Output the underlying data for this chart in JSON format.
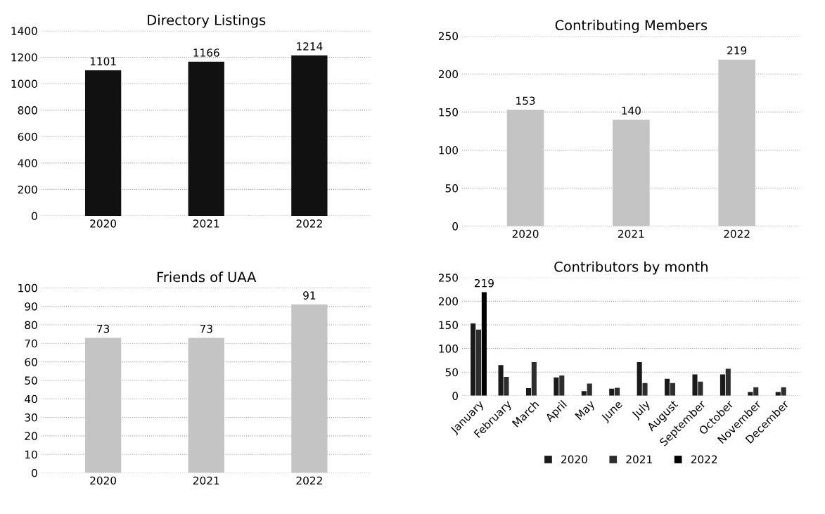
{
  "chart_data": [
    {
      "type": "bar",
      "title": "Directory Listings",
      "categories": [
        "2020",
        "2021",
        "2022"
      ],
      "values": [
        1101,
        1166,
        1214
      ],
      "color": "#111111",
      "ylim": [
        0,
        1400
      ],
      "yticks": [
        0,
        200,
        400,
        600,
        800,
        1000,
        1200,
        1400
      ],
      "grid": "y",
      "data_labels": true
    },
    {
      "type": "bar",
      "title": "Contributing Members",
      "categories": [
        "2020",
        "2021",
        "2022"
      ],
      "values": [
        153,
        140,
        219
      ],
      "color": "#c4c4c4",
      "ylim": [
        0,
        250
      ],
      "yticks": [
        0,
        50,
        100,
        150,
        200,
        250
      ],
      "grid": "y",
      "data_labels": true
    },
    {
      "type": "bar",
      "title": "Friends of UAA",
      "categories": [
        "2020",
        "2021",
        "2022"
      ],
      "values": [
        73,
        73,
        91
      ],
      "color": "#c4c4c4",
      "ylim": [
        0,
        100
      ],
      "yticks": [
        0,
        10,
        20,
        30,
        40,
        50,
        60,
        70,
        80,
        90,
        100
      ],
      "grid": "y",
      "data_labels": true
    },
    {
      "type": "bar",
      "title": "Contributors by month",
      "categories": [
        "January",
        "February",
        "March",
        "April",
        "May",
        "June",
        "July",
        "August",
        "September",
        "October",
        "November",
        "December"
      ],
      "ylim": [
        0,
        250
      ],
      "yticks": [
        0,
        50,
        100,
        150,
        200,
        250
      ],
      "grid": "y",
      "legend": "bottom",
      "series": [
        {
          "name": "2020",
          "color": "#1a1a1a",
          "values": [
            153,
            65,
            16,
            39,
            10,
            15,
            71,
            36,
            45,
            45,
            8,
            8
          ]
        },
        {
          "name": "2021",
          "color": "#2e2e2e",
          "values": [
            140,
            40,
            71,
            43,
            26,
            17,
            27,
            27,
            30,
            57,
            18,
            18
          ]
        },
        {
          "name": "2022",
          "color": "#000000",
          "values": [
            219,
            null,
            null,
            null,
            null,
            null,
            null,
            null,
            null,
            null,
            null,
            null
          ],
          "value_labels": [
            "219",
            null,
            null,
            null,
            null,
            null,
            null,
            null,
            null,
            null,
            null,
            null
          ]
        }
      ]
    }
  ]
}
